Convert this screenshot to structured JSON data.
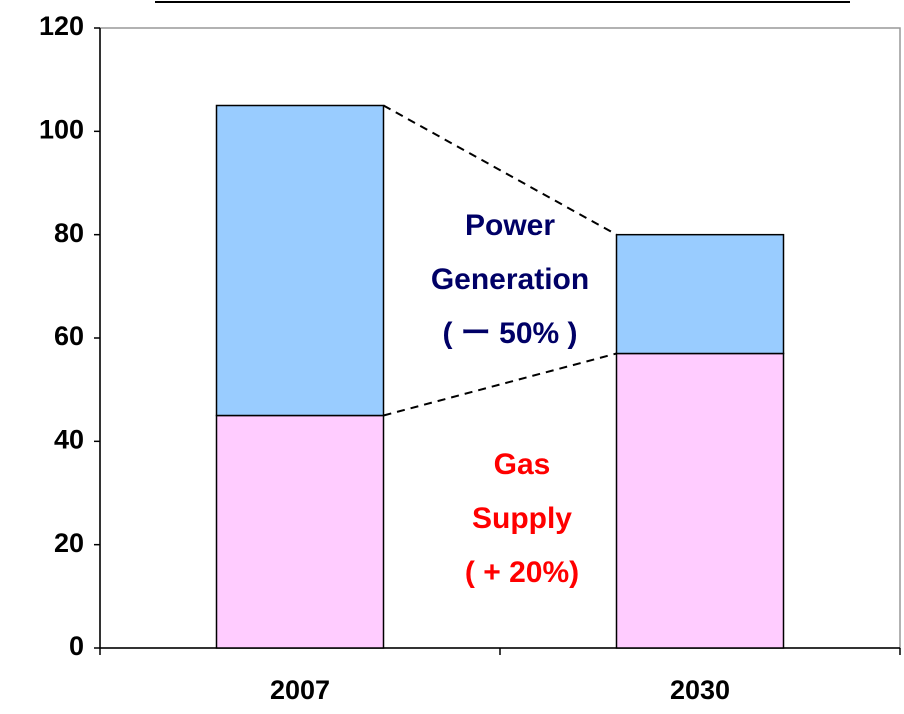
{
  "chart_data": {
    "type": "stacked_bar",
    "categories": [
      "2007",
      "2030"
    ],
    "series": [
      {
        "color": "#ffccff",
        "values": [
          45,
          57
        ]
      },
      {
        "color": "#99ccff",
        "values": [
          60,
          23
        ]
      }
    ],
    "ylim": [
      0,
      120
    ],
    "yticks": [
      0,
      20,
      40,
      60,
      80,
      100,
      120
    ],
    "annotations": [
      {
        "lines": [
          "Power",
          "Generation",
          "( ー 50% )"
        ],
        "color": "#000066"
      },
      {
        "lines": [
          "Gas",
          "Supply",
          "( + 20%)"
        ],
        "color": "#ff0000"
      }
    ]
  }
}
